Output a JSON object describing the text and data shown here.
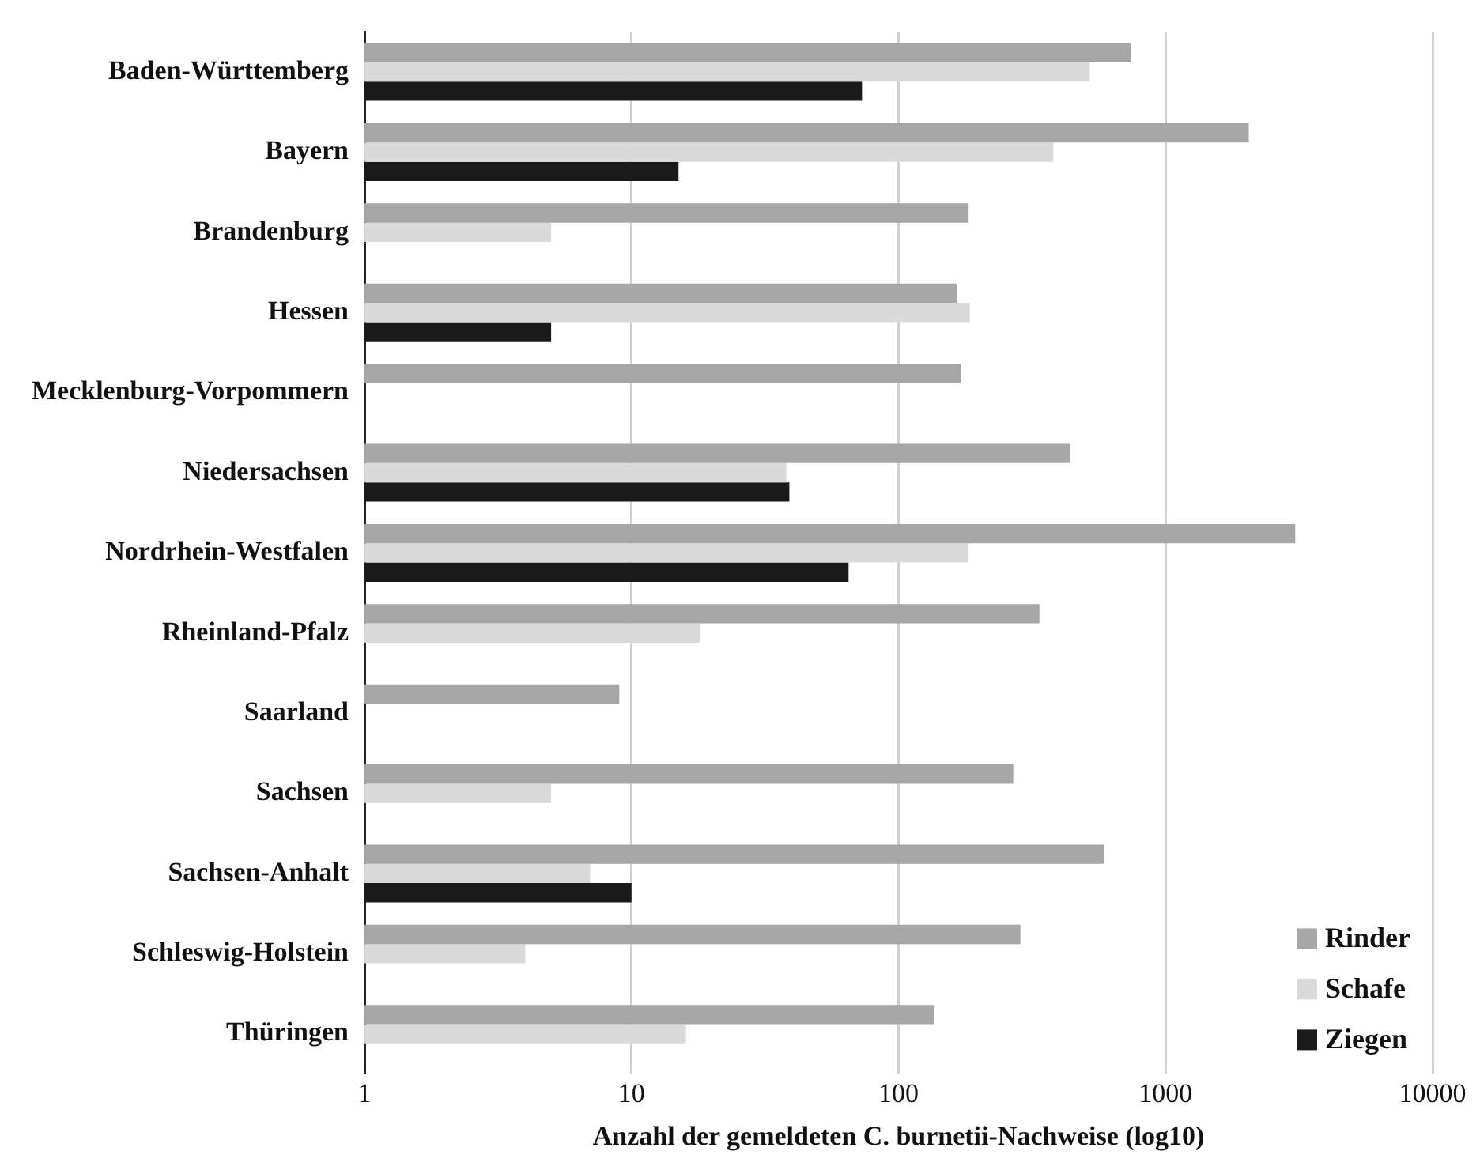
{
  "chart_data": {
    "type": "bar",
    "orientation": "horizontal",
    "log": "x",
    "xlabel": "Anzahl der gemeldeten C. burnetii-Nachweise (log10)",
    "categories": [
      "Baden-Württemberg",
      "Bayern",
      "Brandenburg",
      "Hessen",
      "Mecklenburg-Vorpommern",
      "Niedersachsen",
      "Nordrhein-Westfalen",
      "Rheinland-Pfalz",
      "Saarland",
      "Sachsen",
      "Sachsen-Anhalt",
      "Schleswig-Holstein",
      "Thüringen"
    ],
    "series": [
      {
        "name": "Rinder",
        "color": "#a6a6a6",
        "values": [
          740,
          2050,
          183,
          165,
          171,
          439,
          3060,
          337,
          9,
          269,
          590,
          286,
          136
        ]
      },
      {
        "name": "Schafe",
        "color": "#dadada",
        "values": [
          520,
          380,
          5,
          185,
          1,
          38,
          183,
          18,
          null,
          5,
          7,
          4,
          16
        ]
      },
      {
        "name": "Ziegen",
        "color": "#1a1a1a",
        "values": [
          73,
          15,
          null,
          5,
          1,
          39,
          65,
          null,
          null,
          null,
          10,
          null,
          null
        ]
      }
    ],
    "xlim": [
      1,
      10000
    ],
    "xticks": [
      1,
      10,
      100,
      1000,
      10000
    ],
    "grid": "x",
    "legend": "bottom right"
  }
}
